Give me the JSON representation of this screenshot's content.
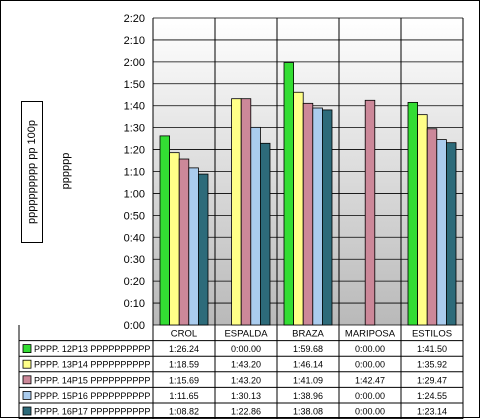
{
  "chart_data": {
    "type": "bar",
    "categories": [
      "CROL",
      "ESPALDA",
      "BRAZA",
      "MARIPOSA",
      "ESTILOS"
    ],
    "series": [
      {
        "name": "PPPP. 12P13 PPPPPPPPPP",
        "color": "#33dd33",
        "values": [
          86.24,
          0,
          119.68,
          0,
          101.5
        ],
        "labels": [
          "1:26.24",
          "0:00.00",
          "1:59.68",
          "0:00.00",
          "1:41.50"
        ]
      },
      {
        "name": "PPPP. 13P14 PPPPPPPPPP",
        "color": "#ffff88",
        "values": [
          78.59,
          103.2,
          106.14,
          0,
          95.92
        ],
        "labels": [
          "1:18.59",
          "1:43.20",
          "1:46.14",
          "0:00.00",
          "1:35.92"
        ]
      },
      {
        "name": "PPPP. 14P15 PPPPPPPPPP",
        "color": "#cc8899",
        "values": [
          75.69,
          103.2,
          101.09,
          102.47,
          89.47
        ],
        "labels": [
          "1:15.69",
          "1:43.20",
          "1:41.09",
          "1:42.47",
          "1:29.47"
        ]
      },
      {
        "name": "PPPP. 15P16 PPPPPPPPPP",
        "color": "#aaccee",
        "values": [
          71.65,
          90.13,
          98.96,
          0,
          84.55
        ],
        "labels": [
          "1:11.65",
          "1:30.13",
          "1:38.96",
          "0:00.00",
          "1:24.55"
        ]
      },
      {
        "name": "PPPP. 16P17 PPPPPPPPPP",
        "color": "#2d6b7a",
        "values": [
          68.82,
          82.86,
          98.08,
          0,
          83.14
        ],
        "labels": [
          "1:08.82",
          "1:22.86",
          "1:38.08",
          "0:00.00",
          "1:23.14"
        ]
      }
    ],
    "yticks": [
      "0:00",
      "0:10",
      "0:20",
      "0:30",
      "0:40",
      "0:50",
      "1:00",
      "1:10",
      "1:20",
      "1:30",
      "1:40",
      "1:50",
      "2:00",
      "2:10",
      "2:20"
    ],
    "ylim": [
      0,
      140
    ],
    "ylabel": "pppppppppp pp 100p",
    "ylabel_secondary": "pppppp",
    "grid": true,
    "legend": "table-below"
  }
}
